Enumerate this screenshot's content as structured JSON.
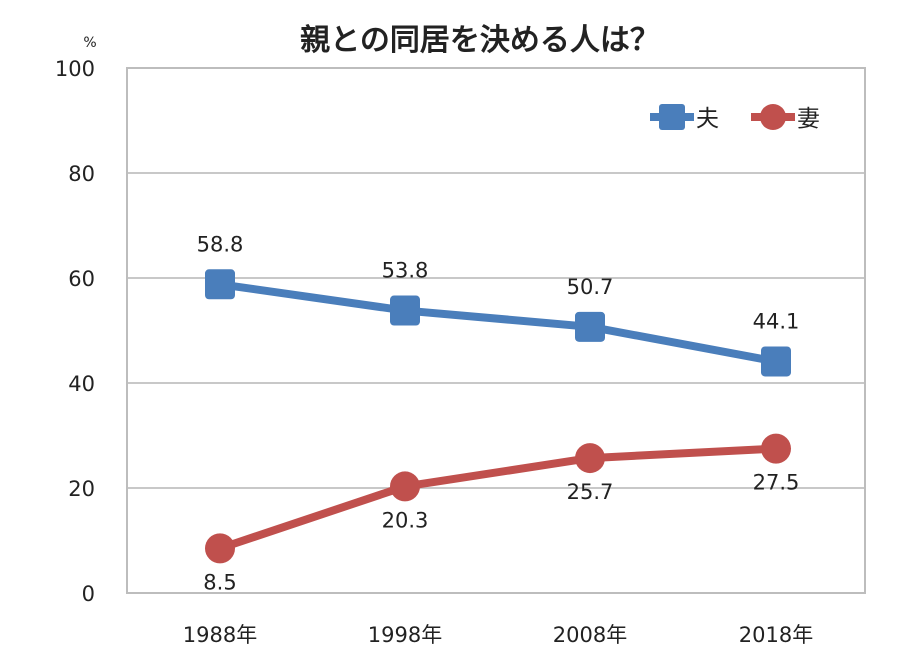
{
  "chart_data": {
    "type": "line",
    "title": "親との同居を決める人は？",
    "ylabel": "%",
    "xlabel": "",
    "ylim": [
      0,
      100
    ],
    "yticks": [
      0,
      20,
      40,
      60,
      80,
      100
    ],
    "grid": true,
    "legend_position": "top-right",
    "categories": [
      "1988年",
      "1998年",
      "2008年",
      "2018年"
    ],
    "series": [
      {
        "name": "夫",
        "values": [
          58.8,
          53.8,
          50.7,
          44.1
        ],
        "color": "#4a7ebb",
        "marker": "square",
        "labels": [
          "58.8",
          "53.8",
          "50.7",
          "44.1"
        ]
      },
      {
        "name": "妻",
        "values": [
          8.5,
          20.3,
          25.7,
          27.5
        ],
        "color": "#c0504d",
        "marker": "circle",
        "labels": [
          "8.5",
          "20.3",
          "25.7",
          "27.5"
        ]
      }
    ]
  }
}
